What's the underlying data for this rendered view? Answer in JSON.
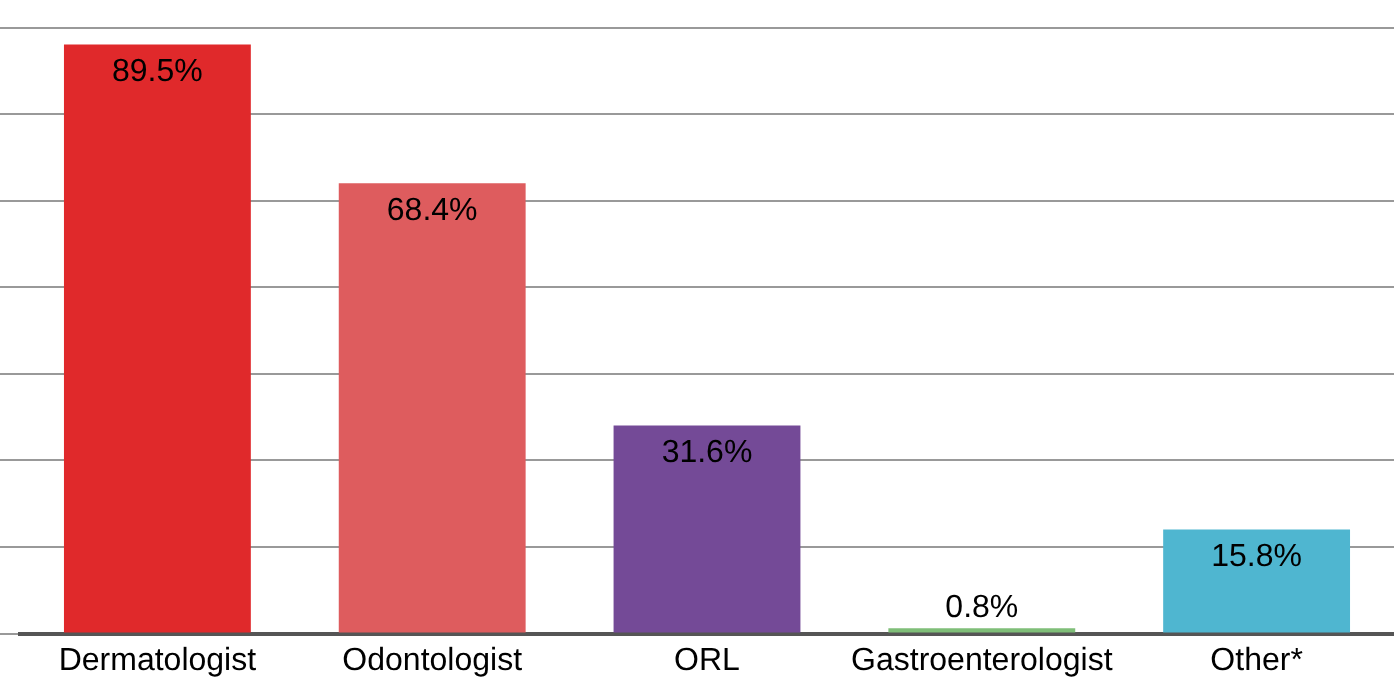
{
  "chart_data": {
    "type": "bar",
    "categories": [
      "Dermatologist",
      "Odontologist",
      "ORL",
      "Gastroenterologist",
      "Other*"
    ],
    "values": [
      89.5,
      68.4,
      31.6,
      0.8,
      15.8
    ],
    "colors": [
      "#e0292b",
      "#de5c5e",
      "#744a97",
      "#7fbe78",
      "#4fb6d0"
    ],
    "value_labels": [
      "89.5%",
      "68.4%",
      "31.6%",
      "0.8%",
      "15.8%"
    ],
    "ylim": [
      0,
      92
    ],
    "yticks": [
      {
        "value": 0,
        "label": null
      },
      {
        "value": 13.1,
        "label": null
      },
      {
        "value": 26.3,
        "label": null
      },
      {
        "value": 39.4,
        "label": null
      },
      {
        "value": 52.6,
        "label": null
      },
      {
        "value": 65.7,
        "label": null
      },
      {
        "value": 78.9,
        "label": null
      },
      {
        "value": 92,
        "label": null
      }
    ],
    "tick_labels": "x",
    "grid": "y",
    "legend": false
  }
}
